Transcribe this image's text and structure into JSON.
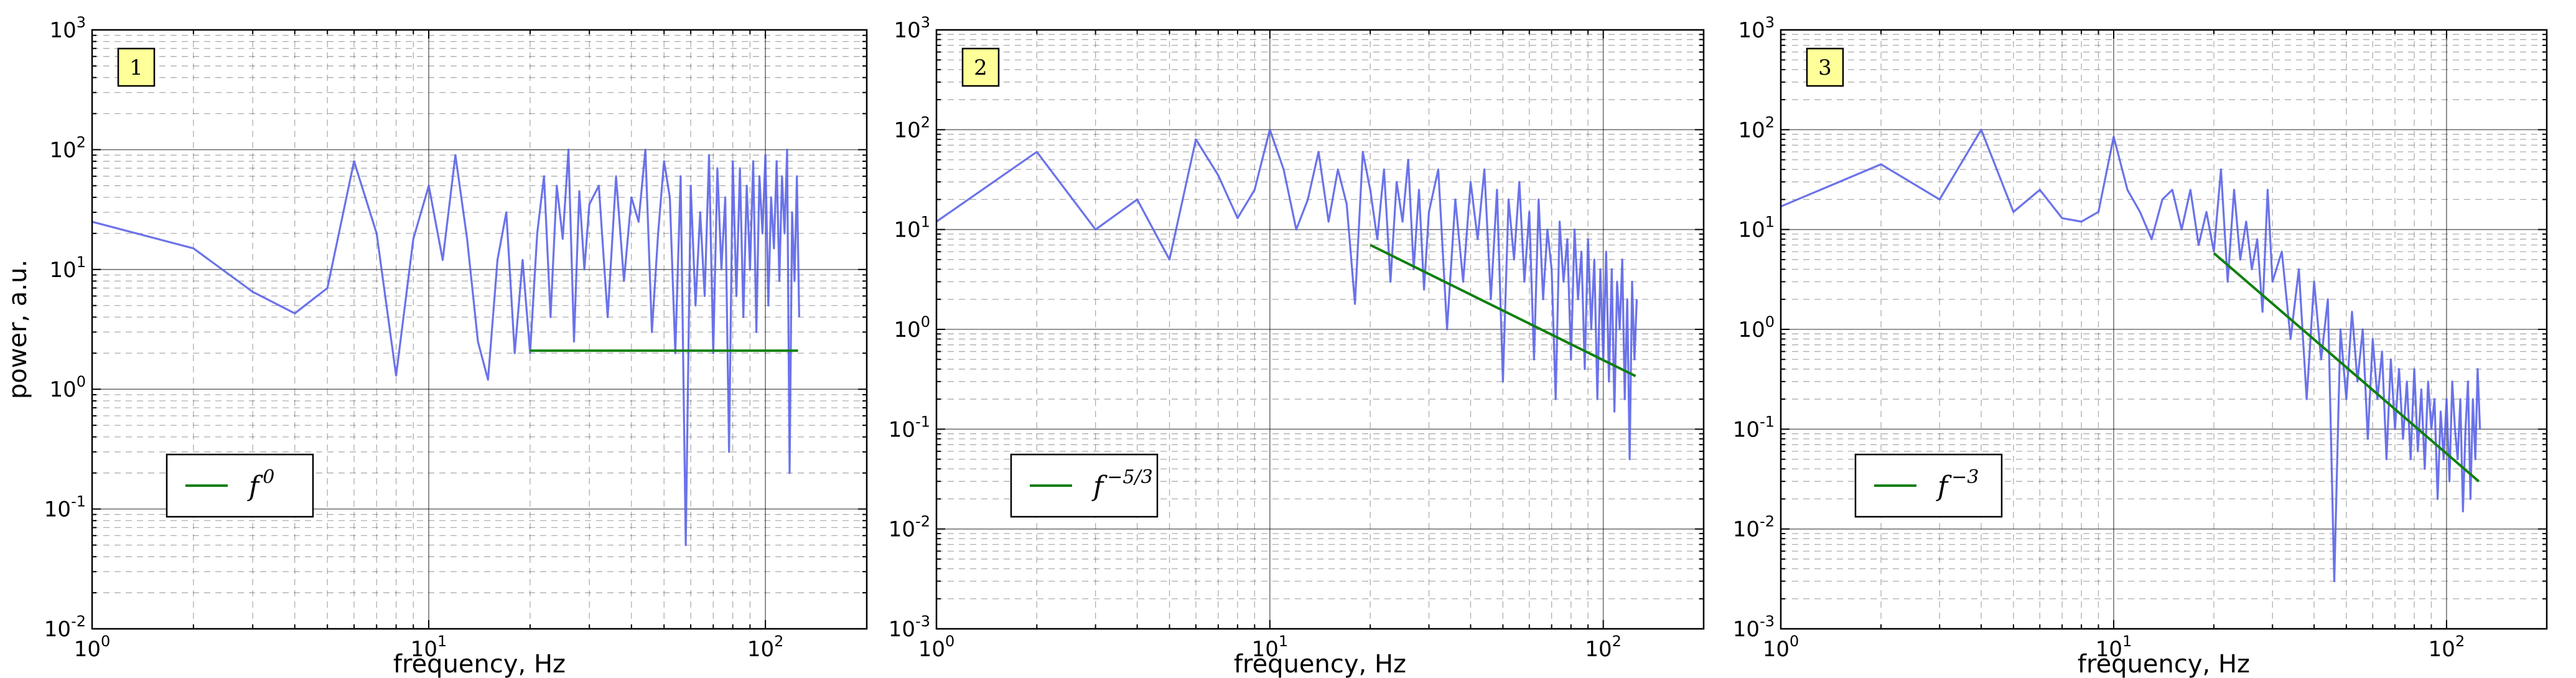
{
  "chart_data": [
    {
      "type": "line",
      "panel_label": "1",
      "xscale": "log",
      "yscale": "log",
      "xlim": [
        1,
        200
      ],
      "ylim": [
        0.01,
        1000
      ],
      "xlabel": "frequency, Hz",
      "ylabel": "power, a.u.",
      "grid": true,
      "legend_position": "lower-left",
      "x_tick_labels": [
        [
          "10",
          "0"
        ],
        [
          "10",
          "1"
        ],
        [
          "10",
          "2"
        ]
      ],
      "y_tick_labels": [
        [
          "10",
          "-2"
        ],
        [
          "10",
          "-1"
        ],
        [
          "10",
          "0"
        ],
        [
          "10",
          "1"
        ],
        [
          "10",
          "2"
        ],
        [
          "10",
          "3"
        ]
      ],
      "series": [
        {
          "style": "spectrum",
          "color": "#5b64e8",
          "x": [
            1,
            2,
            3,
            4,
            5,
            6,
            7,
            8,
            9,
            10,
            11,
            12,
            13,
            14,
            15,
            16,
            17,
            18,
            19,
            20,
            21,
            22,
            23,
            24,
            25,
            26,
            27,
            28,
            29,
            30,
            32,
            34,
            36,
            38,
            40,
            42,
            44,
            46,
            48,
            50,
            52,
            54,
            56,
            58,
            60,
            62,
            64,
            66,
            68,
            70,
            72,
            74,
            76,
            78,
            80,
            82,
            84,
            86,
            88,
            90,
            92,
            94,
            96,
            98,
            100,
            102,
            104,
            106,
            108,
            110,
            112,
            114,
            116,
            118,
            120,
            122,
            124,
            126
          ],
          "y": [
            25,
            15,
            6.5,
            4.3,
            7,
            80,
            20,
            1.3,
            18,
            50,
            12,
            90,
            18,
            2.5,
            1.2,
            12,
            30,
            2,
            12,
            2,
            20,
            60,
            4,
            50,
            18,
            100,
            2.5,
            45,
            10,
            35,
            50,
            4,
            60,
            8,
            40,
            25,
            100,
            3,
            20,
            80,
            40,
            2,
            60,
            0.05,
            50,
            5,
            30,
            6,
            90,
            2,
            70,
            10,
            40,
            0.3,
            80,
            6,
            70,
            4,
            50,
            10,
            80,
            3,
            60,
            20,
            90,
            5,
            40,
            15,
            80,
            8,
            60,
            20,
            100,
            0.2,
            30,
            8,
            60,
            4
          ]
        },
        {
          "name": "f^0",
          "color": "#108010",
          "x": [
            20,
            125
          ],
          "y": [
            2.1,
            2.1
          ]
        }
      ],
      "legend_label_base": "f",
      "legend_label_exponent": "0"
    },
    {
      "type": "line",
      "panel_label": "2",
      "xscale": "log",
      "yscale": "log",
      "xlim": [
        1,
        200
      ],
      "ylim": [
        0.001,
        1000
      ],
      "xlabel": "frequency, Hz",
      "ylabel": "",
      "grid": true,
      "legend_position": "lower-left",
      "x_tick_labels": [
        [
          "10",
          "0"
        ],
        [
          "10",
          "1"
        ],
        [
          "10",
          "2"
        ]
      ],
      "y_tick_labels": [
        [
          "10",
          "-3"
        ],
        [
          "10",
          "-2"
        ],
        [
          "10",
          "-1"
        ],
        [
          "10",
          "0"
        ],
        [
          "10",
          "1"
        ],
        [
          "10",
          "2"
        ],
        [
          "10",
          "3"
        ]
      ],
      "series": [
        {
          "style": "spectrum",
          "color": "#5b64e8",
          "x": [
            1,
            2,
            3,
            4,
            5,
            6,
            7,
            8,
            9,
            10,
            11,
            12,
            13,
            14,
            15,
            16,
            17,
            18,
            19,
            20,
            21,
            22,
            23,
            24,
            25,
            26,
            27,
            28,
            29,
            30,
            32,
            34,
            36,
            38,
            40,
            42,
            44,
            46,
            48,
            50,
            52,
            54,
            56,
            58,
            60,
            62,
            64,
            66,
            68,
            70,
            72,
            74,
            76,
            78,
            80,
            82,
            84,
            86,
            88,
            90,
            92,
            94,
            96,
            98,
            100,
            102,
            104,
            106,
            108,
            110,
            112,
            114,
            116,
            118,
            120,
            122,
            124,
            126
          ],
          "y": [
            12,
            60,
            10,
            20,
            5,
            80,
            35,
            13,
            25,
            100,
            40,
            10,
            20,
            60,
            12,
            40,
            18,
            1.8,
            60,
            25,
            8,
            40,
            3,
            30,
            12,
            50,
            4,
            25,
            2.5,
            15,
            40,
            1,
            20,
            3,
            30,
            8,
            40,
            2,
            25,
            0.3,
            20,
            5,
            30,
            3,
            15,
            0.5,
            20,
            2,
            10,
            4,
            0.2,
            12,
            3,
            8,
            0.5,
            10,
            2,
            6,
            0.4,
            8,
            1,
            5,
            0.2,
            4,
            0.5,
            6,
            0.3,
            4,
            0.15,
            3,
            1,
            5,
            0.2,
            2,
            0.05,
            3,
            0.5,
            2
          ]
        },
        {
          "name": "f^{-5/3}",
          "color": "#108010",
          "x": [
            20,
            125
          ],
          "y": [
            7,
            0.34
          ]
        }
      ],
      "legend_label_base": "f",
      "legend_label_exponent": "−5/3"
    },
    {
      "type": "line",
      "panel_label": "3",
      "xscale": "log",
      "yscale": "log",
      "xlim": [
        1,
        200
      ],
      "ylim": [
        0.001,
        1000
      ],
      "xlabel": "frequency, Hz",
      "ylabel": "",
      "grid": true,
      "legend_position": "lower-left",
      "x_tick_labels": [
        [
          "10",
          "0"
        ],
        [
          "10",
          "1"
        ],
        [
          "10",
          "2"
        ]
      ],
      "y_tick_labels": [
        [
          "10",
          "-3"
        ],
        [
          "10",
          "-2"
        ],
        [
          "10",
          "-1"
        ],
        [
          "10",
          "0"
        ],
        [
          "10",
          "1"
        ],
        [
          "10",
          "2"
        ],
        [
          "10",
          "3"
        ]
      ],
      "series": [
        {
          "style": "spectrum",
          "color": "#5b64e8",
          "x": [
            1,
            2,
            3,
            4,
            5,
            6,
            7,
            8,
            9,
            10,
            11,
            12,
            13,
            14,
            15,
            16,
            17,
            18,
            19,
            20,
            21,
            22,
            23,
            24,
            25,
            26,
            27,
            28,
            29,
            30,
            32,
            34,
            36,
            38,
            40,
            42,
            44,
            46,
            48,
            50,
            52,
            54,
            56,
            58,
            60,
            62,
            64,
            66,
            68,
            70,
            72,
            74,
            76,
            78,
            80,
            82,
            84,
            86,
            88,
            90,
            92,
            94,
            96,
            98,
            100,
            102,
            104,
            106,
            108,
            110,
            112,
            114,
            116,
            118,
            120,
            122,
            124,
            126
          ],
          "y": [
            17,
            45,
            20,
            100,
            15,
            25,
            13,
            12,
            15,
            85,
            25,
            15,
            8,
            20,
            25,
            10,
            25,
            7,
            15,
            6,
            40,
            3,
            25,
            5,
            12,
            4,
            8,
            1.5,
            25,
            3,
            6,
            0.8,
            4,
            0.2,
            3,
            0.5,
            2,
            0.003,
            1,
            0.2,
            1.5,
            0.3,
            1,
            0.08,
            0.8,
            0.2,
            0.6,
            0.05,
            0.5,
            0.1,
            0.4,
            0.08,
            0.3,
            0.05,
            0.4,
            0.06,
            0.25,
            0.04,
            0.3,
            0.1,
            0.2,
            0.02,
            0.15,
            0.05,
            0.2,
            0.03,
            0.3,
            0.1,
            0.05,
            0.2,
            0.015,
            0.1,
            0.3,
            0.02,
            0.2,
            0.05,
            0.4,
            0.1
          ]
        },
        {
          "name": "f^{-3}",
          "color": "#108010",
          "x": [
            20,
            125
          ],
          "y": [
            5.8,
            0.03
          ]
        }
      ],
      "legend_label_base": "f",
      "legend_label_exponent": "−3"
    }
  ]
}
